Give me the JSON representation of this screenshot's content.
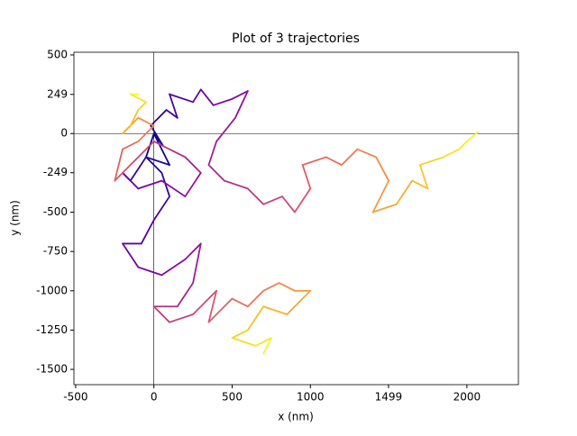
{
  "chart_data": {
    "type": "trajectory",
    "title": "Plot of 3 trajectories",
    "x_label": "x (nm)",
    "y_label": "y (nm)",
    "xlim": [
      -511,
      2329
    ],
    "ylim": [
      -1597,
      517
    ],
    "xticks": [
      -500,
      0,
      500,
      1000,
      1499,
      2000
    ],
    "yticks": [
      -1500,
      -1250,
      -1000,
      -750,
      -500,
      -249,
      0,
      249,
      500
    ],
    "axhline": 0,
    "axvline": 0,
    "colormap": [
      "#0d0887",
      "#5302a3",
      "#8b0aa5",
      "#b83289",
      "#db5c68",
      "#f48849",
      "#febc2a",
      "#f0f921"
    ],
    "series": [
      {
        "x": [
          0,
          60,
          -20,
          80,
          150,
          100,
          250,
          300,
          380,
          500,
          600,
          520,
          400,
          350,
          450,
          600,
          700,
          820,
          900,
          1000,
          950,
          1100,
          1200,
          1300,
          1420,
          1500,
          1400,
          1550,
          1650,
          1750,
          1700,
          1850,
          1950,
          2000,
          2070
        ],
        "y": [
          0,
          -80,
          50,
          150,
          100,
          250,
          200,
          280,
          180,
          220,
          270,
          100,
          -50,
          -200,
          -300,
          -350,
          -450,
          -400,
          -500,
          -350,
          -200,
          -150,
          -200,
          -100,
          -150,
          -300,
          -500,
          -450,
          -300,
          -350,
          -200,
          -150,
          -100,
          -50,
          10
        ]
      },
      {
        "x": [
          0,
          -50,
          50,
          100,
          0,
          -80,
          -200,
          -100,
          50,
          200,
          300,
          250,
          150,
          0,
          100,
          250,
          400,
          350,
          500,
          600,
          700,
          800,
          900,
          1000,
          850,
          700,
          600,
          500,
          650,
          750,
          700
        ],
        "y": [
          0,
          -150,
          -250,
          -400,
          -550,
          -700,
          -700,
          -850,
          -900,
          -800,
          -700,
          -950,
          -1100,
          -1100,
          -1200,
          -1150,
          -1000,
          -1200,
          -1050,
          -1100,
          -1000,
          -950,
          -1000,
          -1000,
          -1150,
          -1100,
          -1250,
          -1300,
          -1350,
          -1300,
          -1400
        ]
      },
      {
        "x": [
          0,
          100,
          -50,
          -150,
          -200,
          -100,
          50,
          200,
          300,
          200,
          100,
          0,
          -150,
          -250,
          -200,
          -100,
          0,
          -100,
          -200,
          -150,
          -100,
          -50,
          -150,
          -100
        ],
        "y": [
          0,
          -200,
          -150,
          -300,
          -250,
          -350,
          -300,
          -400,
          -250,
          -150,
          -100,
          -50,
          -200,
          -300,
          -100,
          -50,
          50,
          100,
          0,
          50,
          150,
          200,
          250,
          250
        ]
      }
    ]
  }
}
